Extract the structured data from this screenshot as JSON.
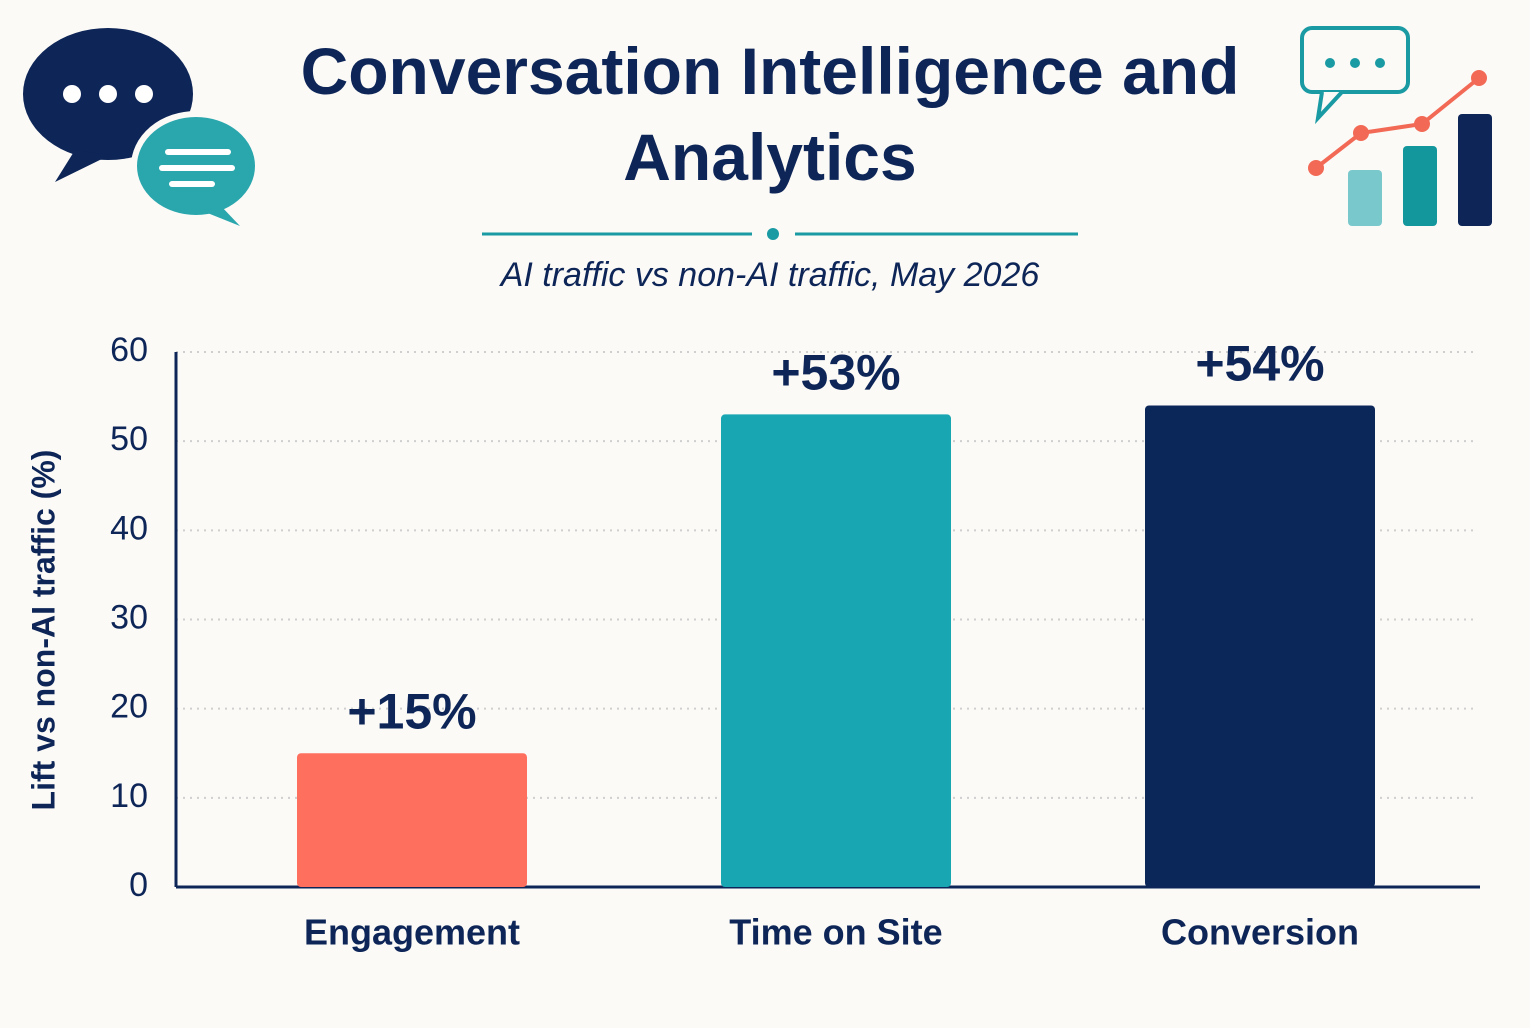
{
  "chart_data": {
    "type": "bar",
    "title": "Conversation Intelligence and Analytics",
    "subtitle": "AI traffic vs non-AI traffic, May 2026",
    "y_label": "Lift vs non-AI traffic (%)",
    "categories": [
      "Engagement",
      "Time on Site",
      "Conversion"
    ],
    "values": [
      15,
      53,
      54
    ],
    "value_labels": [
      "+15%",
      "+53%",
      "+54%"
    ],
    "colors": [
      "#ff6f5e",
      "#17a6b2",
      "#0b2658"
    ],
    "ylim": [
      0,
      60
    ],
    "yticks": [
      0,
      10,
      20,
      30,
      40,
      50,
      60
    ],
    "grid": true
  }
}
